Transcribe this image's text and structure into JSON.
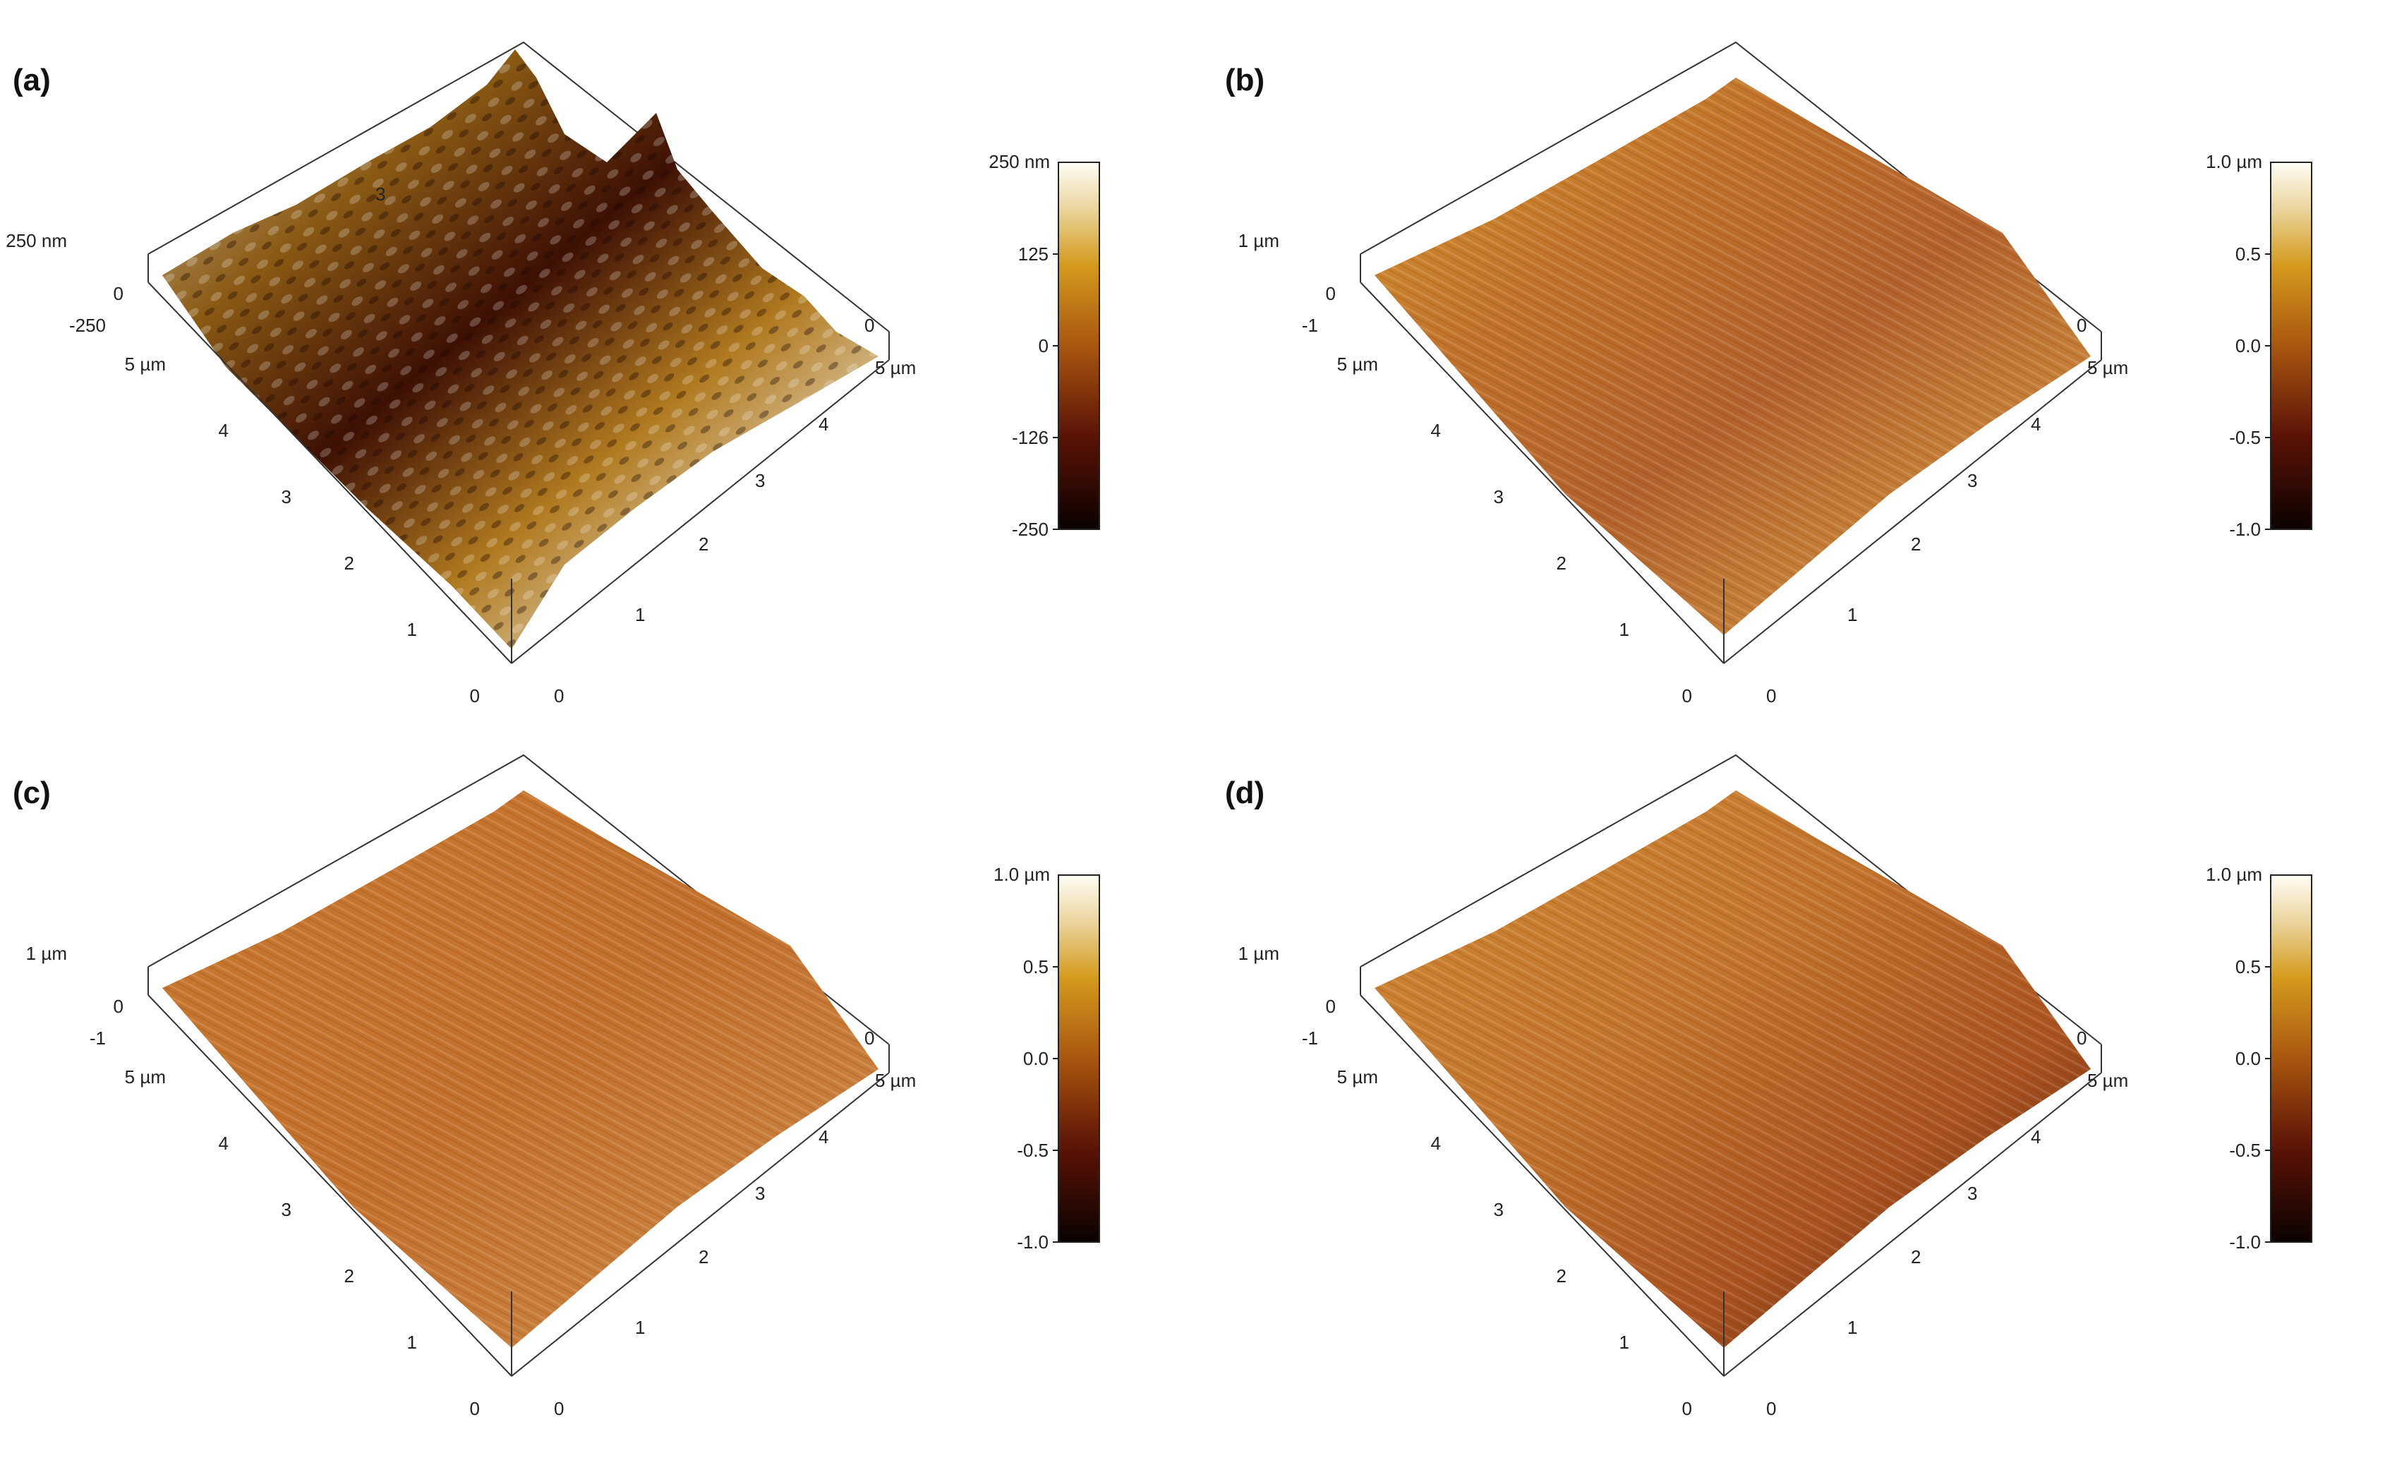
{
  "figure": {
    "panels": [
      {
        "letter": "(a)",
        "z_axis": [
          "250 nm",
          "0",
          "-250"
        ],
        "left_axis": [
          "5 µm",
          "4",
          "3",
          "2",
          "1",
          "0"
        ],
        "right_axis": [
          "0",
          "5 µm",
          "4",
          "3",
          "2",
          "1",
          "0"
        ],
        "surface_label": "3",
        "colorbar": {
          "top": "250 nm",
          "ticks": [
            "125",
            "0",
            "-126",
            "-250"
          ]
        }
      },
      {
        "letter": "(b)",
        "z_axis": [
          "1 µm",
          "0",
          "-1"
        ],
        "left_axis": [
          "5 µm",
          "4",
          "3",
          "2",
          "1",
          "0"
        ],
        "right_axis": [
          "0",
          "5 µm",
          "4",
          "3",
          "2",
          "1",
          "0"
        ],
        "colorbar": {
          "top": "1.0 µm",
          "ticks": [
            "0.5",
            "0.0",
            "-0.5",
            "-1.0"
          ]
        }
      },
      {
        "letter": "(c)",
        "z_axis": [
          "1 µm",
          "0",
          "-1"
        ],
        "left_axis": [
          "5 µm",
          "4",
          "3",
          "2",
          "1",
          "0"
        ],
        "right_axis": [
          "0",
          "5 µm",
          "4",
          "3",
          "2",
          "1",
          "0"
        ],
        "colorbar": {
          "top": "1.0 µm",
          "ticks": [
            "0.5",
            "0.0",
            "-0.5",
            "-1.0"
          ]
        }
      },
      {
        "letter": "(d)",
        "z_axis": [
          "1 µm",
          "0",
          "-1"
        ],
        "left_axis": [
          "5 µm",
          "4",
          "3",
          "2",
          "1",
          "0"
        ],
        "right_axis": [
          "0",
          "5 µm",
          "4",
          "3",
          "2",
          "1",
          "0"
        ],
        "colorbar": {
          "top": "1.0 µm",
          "ticks": [
            "0.5",
            "0.0",
            "-0.5",
            "-1.0"
          ]
        }
      }
    ]
  }
}
